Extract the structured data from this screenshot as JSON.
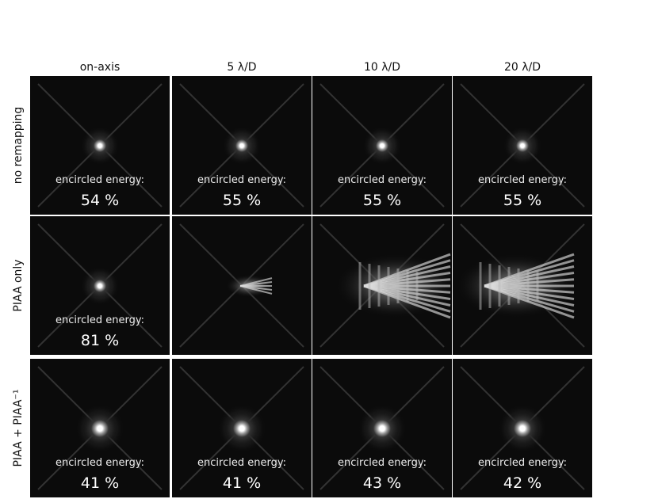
{
  "columns": [
    "on-axis",
    "5 λ/D",
    "10 λ/D",
    "20 λ/D"
  ],
  "rows": [
    {
      "label": "no remapping",
      "cells": [
        {
          "caption": "encircled energy:",
          "value": "54 %"
        },
        {
          "caption": "encircled energy:",
          "value": "55 %"
        },
        {
          "caption": "encircled energy:",
          "value": "55 %"
        },
        {
          "caption": "encircled energy:",
          "value": "55 %"
        }
      ]
    },
    {
      "label": "PIAA only",
      "cells": [
        {
          "caption": "encircled energy:",
          "value": "81 %"
        },
        null,
        null,
        null
      ]
    },
    {
      "label": "PIAA + PIAA⁻¹",
      "cells": [
        {
          "caption": "encircled energy:",
          "value": "41 %"
        },
        {
          "caption": "encircled energy:",
          "value": "41 %"
        },
        {
          "caption": "encircled energy:",
          "value": "43 %"
        },
        {
          "caption": "encircled energy:",
          "value": "42 %"
        }
      ]
    }
  ]
}
